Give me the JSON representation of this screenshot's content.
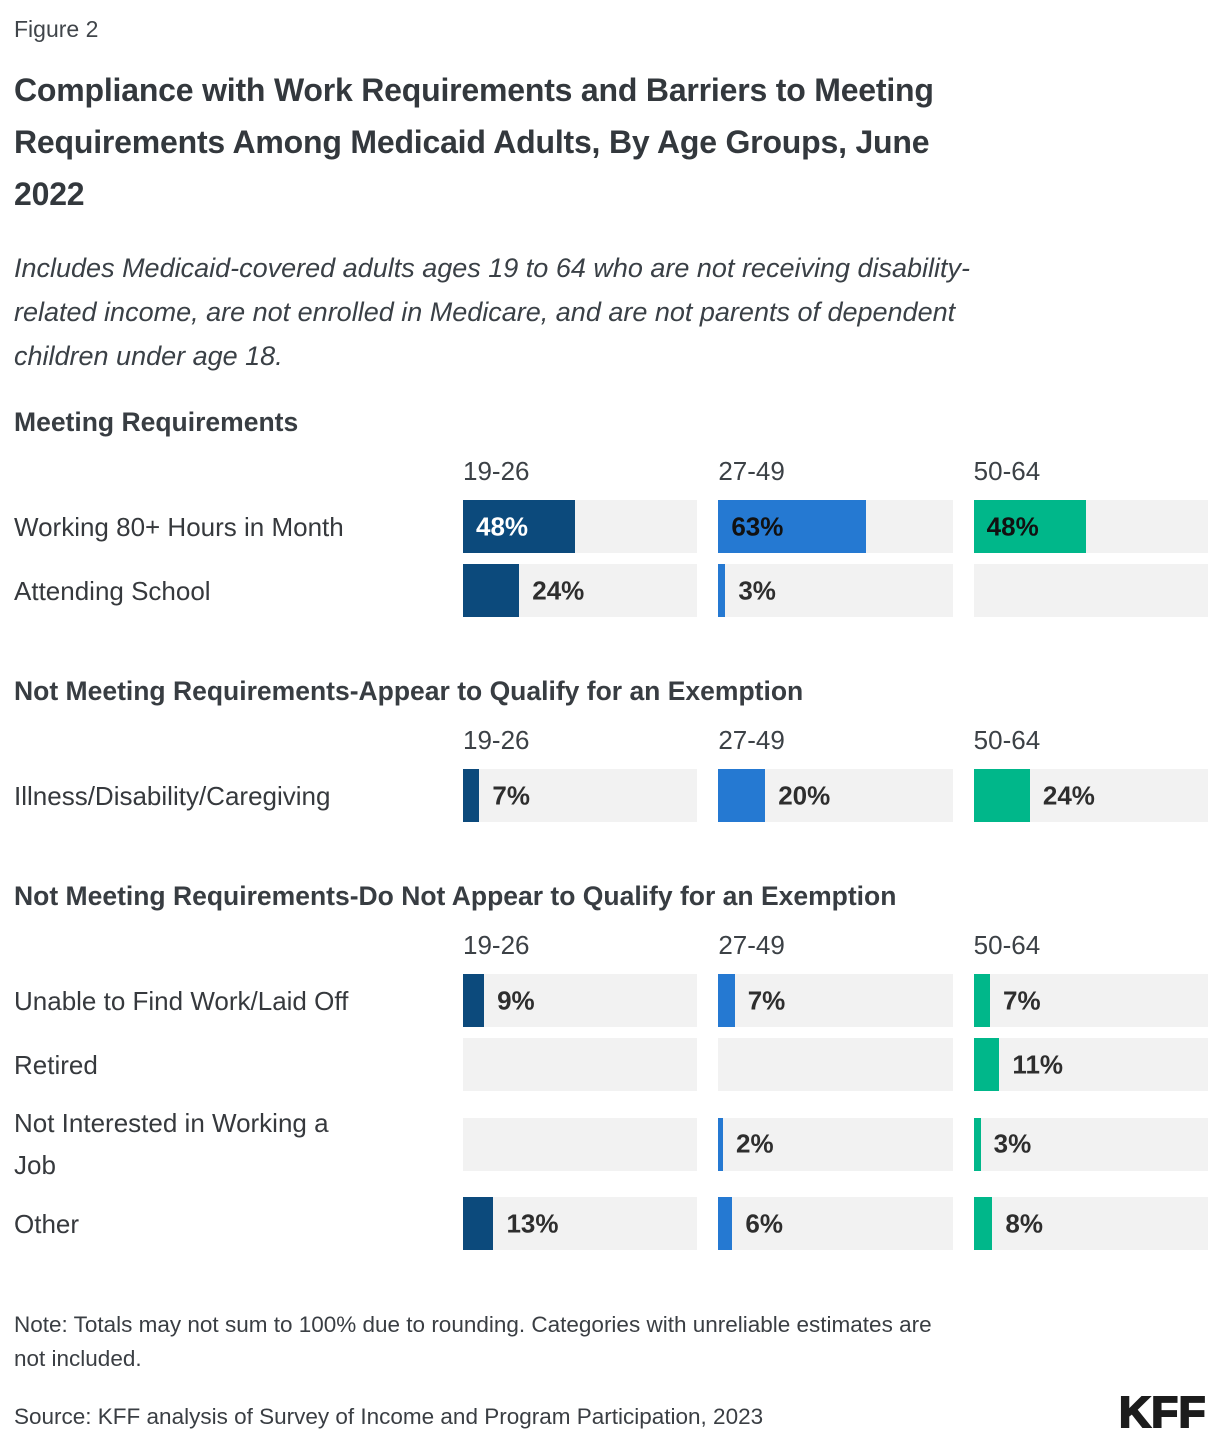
{
  "figure_label": "Figure 2",
  "title_lines": [
    "Compliance with Work Requirements and Barriers to Meeting",
    "Requirements Among Medicaid Adults, By Age Groups, June",
    "2022"
  ],
  "subtitle_lines": [
    "Includes Medicaid-covered adults ages 19 to 64 who are not receiving disability-",
    "related income, are not enrolled in Medicare, and are not parents of dependent",
    "children under age 18."
  ],
  "note_lines": [
    "Note: Totals may not sum to 100% due to rounding. Categories with unreliable estimates are",
    "not included."
  ],
  "source": "Source: KFF analysis of Survey of Income and Program Participation, 2023",
  "logo_text": "KFF",
  "colors": {
    "series": [
      "#0c4a7c",
      "#2579d2",
      "#00b78a"
    ],
    "inside_text": [
      "#ffffff",
      "#111111",
      "#111111"
    ],
    "outside_text": "#2e2e2e",
    "track": "#f2f2f2"
  },
  "chart_data": {
    "type": "bar",
    "unit": "percent",
    "xlim": [
      0,
      100
    ],
    "age_groups": [
      "19-26",
      "27-49",
      "50-64"
    ],
    "sections": [
      {
        "header": "Meeting Requirements",
        "rows": [
          {
            "label": "Working 80+ Hours in Month",
            "values": [
              48,
              63,
              48
            ],
            "label_inside": [
              true,
              true,
              true
            ]
          },
          {
            "label": "Attending School",
            "values": [
              24,
              3,
              null
            ]
          }
        ]
      },
      {
        "header": "Not Meeting Requirements-Appear to Qualify for an Exemption",
        "rows": [
          {
            "label": "Illness/Disability/Caregiving",
            "values": [
              7,
              20,
              24
            ]
          }
        ]
      },
      {
        "header": "Not Meeting Requirements-Do Not Appear to Qualify for an Exemption",
        "rows": [
          {
            "label": "Unable to Find Work/Laid Off",
            "values": [
              9,
              7,
              7
            ]
          },
          {
            "label": "Retired",
            "values": [
              null,
              null,
              11
            ]
          },
          {
            "label": "Not Interested in Working a\nJob",
            "values": [
              null,
              2,
              3
            ]
          },
          {
            "label": "Other",
            "values": [
              13,
              6,
              8
            ]
          }
        ]
      }
    ]
  }
}
